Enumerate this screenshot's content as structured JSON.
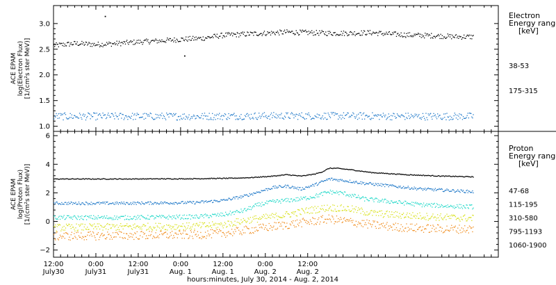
{
  "chart_data": [
    {
      "type": "scatter",
      "panel": "electron",
      "ylabel_lines": [
        "ACE EPAM",
        "log(Electron Flux)",
        "[1/(cm²s ster MeV)]"
      ],
      "ylim": [
        0.9,
        3.35
      ],
      "yticks": [
        1.0,
        1.5,
        2.0,
        2.5,
        3.0
      ],
      "ytick_labels": [
        "1.0",
        "1.5",
        "2.0",
        "2.5",
        "3.0"
      ],
      "legend_title": [
        "Electron",
        "Energy range",
        "[keV]"
      ],
      "series": [
        {
          "name": "38-53",
          "color": "#000000",
          "hours": [
            0,
            6,
            12,
            18,
            24,
            30,
            36,
            42,
            48,
            54,
            60,
            66,
            72,
            78,
            84,
            90,
            96,
            102,
            108,
            114,
            119
          ],
          "values": [
            2.58,
            2.62,
            2.6,
            2.62,
            2.65,
            2.67,
            2.7,
            2.72,
            2.78,
            2.8,
            2.82,
            2.84,
            2.83,
            2.82,
            2.82,
            2.83,
            2.8,
            2.78,
            2.77,
            2.75,
            2.75
          ],
          "scatter": 0.05,
          "outliers": [
            {
              "hour": 14.5,
              "value": 3.15
            },
            {
              "hour": 37,
              "value": 2.38
            }
          ]
        },
        {
          "name": "175-315",
          "color": "#1e78c8",
          "hours": [
            0,
            20,
            40,
            60,
            80,
            100,
            119
          ],
          "values": [
            1.2,
            1.2,
            1.2,
            1.21,
            1.21,
            1.2,
            1.2
          ],
          "scatter": 0.07
        }
      ]
    },
    {
      "type": "scatter",
      "panel": "proton",
      "ylabel_lines": [
        "ACE EPAM",
        "log(Proton Flux)",
        "[1/(cm²s ster MeV)]"
      ],
      "ylim": [
        -2.5,
        6.3
      ],
      "yticks": [
        -2,
        0,
        2,
        4,
        6
      ],
      "ytick_labels": [
        "−2",
        "0",
        "2",
        "4",
        "6"
      ],
      "legend_title": [
        "Proton",
        "Energy range",
        "[keV]"
      ],
      "series": [
        {
          "name": "47-68",
          "color": "#000000",
          "hours": [
            0,
            20,
            40,
            50,
            56,
            62,
            66,
            70,
            74,
            76,
            78,
            80,
            84,
            90,
            100,
            110,
            119
          ],
          "values": [
            3.0,
            3.0,
            3.02,
            3.05,
            3.1,
            3.2,
            3.3,
            3.2,
            3.35,
            3.5,
            3.75,
            3.75,
            3.65,
            3.45,
            3.3,
            3.2,
            3.15
          ],
          "scatter": 0.03
        },
        {
          "name": "115-195",
          "color": "#1e78c8",
          "hours": [
            0,
            20,
            40,
            48,
            54,
            58,
            62,
            66,
            70,
            74,
            78,
            82,
            88,
            96,
            104,
            112,
            119
          ],
          "values": [
            1.3,
            1.3,
            1.35,
            1.5,
            1.8,
            2.1,
            2.4,
            2.5,
            2.3,
            2.6,
            3.0,
            2.9,
            2.7,
            2.5,
            2.3,
            2.2,
            2.1
          ],
          "scatter": 0.1
        },
        {
          "name": "310-580",
          "color": "#20d8c8",
          "hours": [
            0,
            20,
            40,
            48,
            54,
            58,
            62,
            66,
            70,
            74,
            78,
            82,
            88,
            96,
            104,
            112,
            119
          ],
          "values": [
            0.3,
            0.3,
            0.35,
            0.5,
            0.8,
            1.2,
            1.4,
            1.5,
            1.6,
            1.8,
            2.1,
            2.0,
            1.6,
            1.4,
            1.2,
            1.1,
            1.05
          ],
          "scatter": 0.15
        },
        {
          "name": "795-1193",
          "color": "#d8e018",
          "hours": [
            0,
            20,
            40,
            48,
            54,
            60,
            66,
            72,
            78,
            84,
            90,
            96,
            104,
            112,
            119
          ],
          "values": [
            -0.4,
            -0.35,
            -0.3,
            -0.2,
            0.1,
            0.3,
            0.5,
            0.8,
            1.0,
            0.9,
            0.6,
            0.5,
            0.4,
            0.3,
            0.25
          ],
          "scatter": 0.25
        },
        {
          "name": "1060-1900",
          "color": "#f08c1c",
          "hours": [
            0,
            20,
            40,
            48,
            54,
            60,
            66,
            72,
            78,
            84,
            90,
            96,
            104,
            112,
            119
          ],
          "values": [
            -1.0,
            -0.95,
            -0.9,
            -0.8,
            -0.6,
            -0.4,
            -0.2,
            0.0,
            0.2,
            0.0,
            -0.2,
            -0.35,
            -0.45,
            -0.5,
            -0.5
          ],
          "scatter": 0.3
        }
      ]
    }
  ],
  "x_axis": {
    "range_hours": [
      0,
      126
    ],
    "ticks": [
      {
        "hour": 0,
        "line1": "12:00",
        "line2": "July30"
      },
      {
        "hour": 12,
        "line1": "0:00",
        "line2": "July31"
      },
      {
        "hour": 24,
        "line1": "12:00",
        "line2": "July31"
      },
      {
        "hour": 36,
        "line1": "0:00",
        "line2": "Aug. 1"
      },
      {
        "hour": 48,
        "line1": "12:00",
        "line2": "Aug. 1"
      },
      {
        "hour": 60,
        "line1": "0:00",
        "line2": "Aug. 2"
      },
      {
        "hour": 72,
        "line1": "12:00",
        "line2": "Aug. 2"
      }
    ],
    "title": "hours:minutes, July 30, 2014 - Aug. 2, 2014"
  }
}
